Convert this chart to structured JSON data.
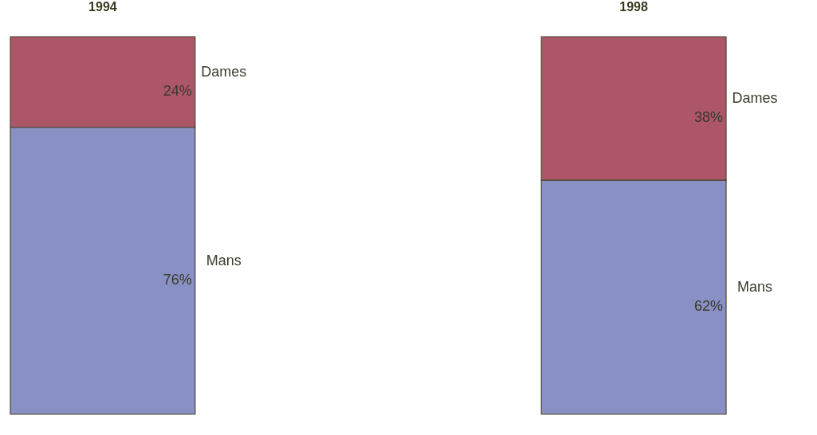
{
  "chart_data": {
    "type": "bar",
    "categories": [
      "1994",
      "1998"
    ],
    "stacked": true,
    "series": [
      {
        "name": "Mans",
        "color": "#8890c4",
        "values": [
          76,
          62
        ],
        "value_labels": [
          "76%",
          "62%"
        ]
      },
      {
        "name": "Dames",
        "color": "#ad5668",
        "values": [
          24,
          38
        ],
        "value_labels": [
          "24%",
          "38%"
        ]
      }
    ]
  }
}
